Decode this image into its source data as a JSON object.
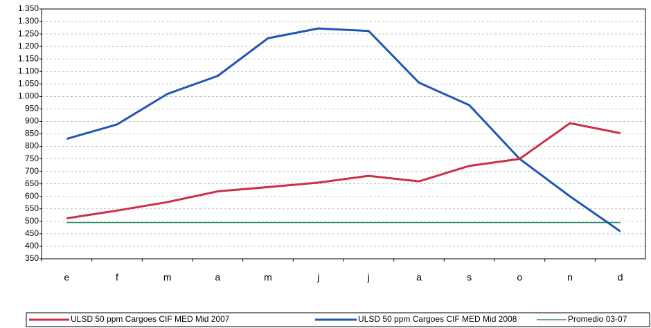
{
  "chart_data": {
    "type": "line",
    "categories": [
      "e",
      "f",
      "m",
      "a",
      "m",
      "j",
      "j",
      "a",
      "s",
      "o",
      "n",
      "d"
    ],
    "series": [
      {
        "name": "ULSD 50 ppm Cargoes CIF MED Mid 2007",
        "color": "#cc2e4a",
        "width": 3,
        "values": [
          512,
          543,
          577,
          620,
          637,
          655,
          682,
          660,
          722,
          750,
          893,
          853
        ]
      },
      {
        "name": "ULSD 50 ppm Cargoes CIF MED Mid 2008",
        "color": "#1f55b5",
        "width": 3,
        "values": [
          830,
          888,
          1010,
          1082,
          1233,
          1272,
          1262,
          1055,
          965,
          750,
          600,
          460
        ]
      },
      {
        "name": "Promedio 03-07",
        "color": "#2e8b66",
        "width": 1.5,
        "values": [
          495,
          495,
          495,
          495,
          495,
          495,
          495,
          495,
          495,
          495,
          495,
          495
        ]
      }
    ],
    "ylim": [
      350,
      1350
    ],
    "yticks": [
      350,
      400,
      450,
      500,
      550,
      600,
      650,
      700,
      750,
      800,
      850,
      900,
      950,
      {
        "value": 1000,
        "label": "1.000"
      },
      {
        "value": 1050,
        "label": "1.050"
      },
      {
        "value": 1100,
        "label": "1.100"
      },
      {
        "value": 1150,
        "label": "1.150"
      },
      {
        "value": 1200,
        "label": "1.200"
      },
      {
        "value": 1250,
        "label": "1.250"
      },
      {
        "value": 1300,
        "label": "1.300"
      },
      {
        "value": 1350,
        "label": "1.350"
      }
    ],
    "grid": true
  }
}
